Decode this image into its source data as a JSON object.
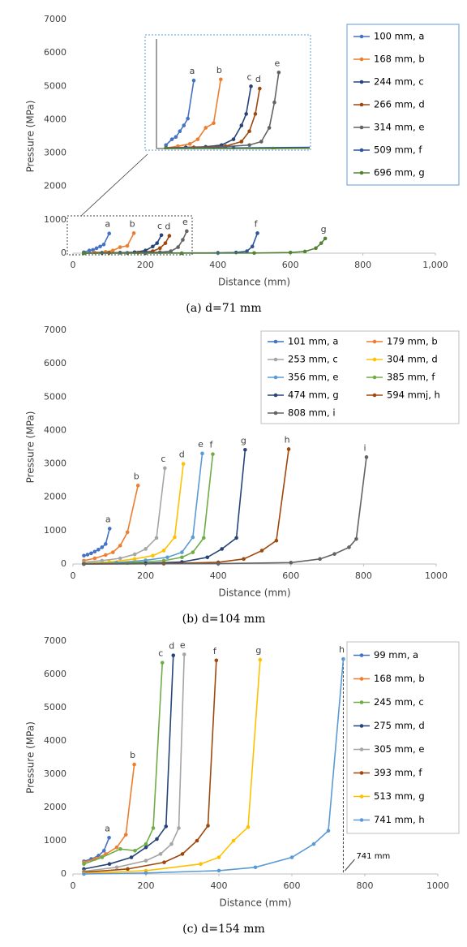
{
  "chart_data": [
    {
      "type": "line",
      "caption": "(a) d=71 mm",
      "xlabel": "Distance (mm)",
      "ylabel": "Pressure (MPa)",
      "xlim": [
        0,
        1000
      ],
      "xticks": [
        0,
        200,
        400,
        600,
        800,
        {
          "value": 1000,
          "label": "1,000"
        }
      ],
      "ylim": [
        0,
        7000
      ],
      "yticks": [
        0,
        1000,
        2000,
        3000,
        4000,
        5000,
        6000,
        7000
      ],
      "legend_columns": 1,
      "inset": true,
      "series": [
        {
          "name": "100 mm, a",
          "label": "a",
          "color": "#4472c4",
          "x": [
            30,
            45,
            55,
            65,
            75,
            85,
            100
          ],
          "values": [
            30,
            80,
            100,
            150,
            200,
            260,
            590
          ]
        },
        {
          "name": "168 mm, b",
          "label": "b",
          "color": "#ed7d31",
          "x": [
            30,
            60,
            90,
            110,
            130,
            150,
            168
          ],
          "values": [
            5,
            20,
            40,
            80,
            180,
            220,
            600
          ]
        },
        {
          "name": "244 mm, c",
          "label": "c",
          "color": "#264478",
          "x": [
            30,
            80,
            130,
            170,
            200,
            220,
            232,
            244
          ],
          "values": [
            5,
            10,
            15,
            30,
            80,
            200,
            300,
            540
          ]
        },
        {
          "name": "266 mm, d",
          "label": "d",
          "color": "#9e480e",
          "x": [
            30,
            100,
            180,
            220,
            240,
            255,
            266
          ],
          "values": [
            5,
            10,
            20,
            60,
            150,
            300,
            520
          ]
        },
        {
          "name": "314 mm, e",
          "label": "e",
          "color": "#636363",
          "x": [
            30,
            150,
            240,
            270,
            290,
            303,
            314
          ],
          "values": [
            5,
            10,
            30,
            60,
            180,
            400,
            660
          ]
        },
        {
          "name": "509 mm, f",
          "label": "f",
          "color": "#2f5597",
          "x": [
            30,
            200,
            400,
            450,
            480,
            495,
            509
          ],
          "values": [
            0,
            5,
            10,
            20,
            60,
            200,
            600
          ]
        },
        {
          "name": "696 mm, g",
          "label": "g",
          "color": "#548235",
          "x": [
            30,
            300,
            500,
            600,
            640,
            670,
            685,
            696
          ],
          "values": [
            0,
            0,
            5,
            20,
            50,
            150,
            300,
            440
          ]
        }
      ]
    },
    {
      "type": "line",
      "caption": "(b) d=104 mm",
      "xlabel": "Distance (mm)",
      "ylabel": "Pressure (MPa)",
      "xlim": [
        0,
        1000
      ],
      "xticks": [
        0,
        200,
        400,
        600,
        800,
        1000
      ],
      "ylim": [
        0,
        7000
      ],
      "yticks": [
        0,
        1000,
        2000,
        3000,
        4000,
        5000,
        6000,
        7000
      ],
      "legend_columns": 2,
      "series": [
        {
          "name": "101 mm, a",
          "label": "a",
          "color": "#4472c4",
          "x": [
            30,
            40,
            50,
            60,
            70,
            80,
            90,
            101
          ],
          "values": [
            250,
            280,
            320,
            370,
            430,
            500,
            600,
            1060
          ]
        },
        {
          "name": "179 mm, b",
          "label": "b",
          "color": "#ed7d31",
          "x": [
            30,
            60,
            90,
            110,
            130,
            150,
            179
          ],
          "values": [
            100,
            170,
            270,
            350,
            550,
            950,
            2350
          ]
        },
        {
          "name": "253 mm, c",
          "label": "c",
          "color": "#a5a5a5",
          "x": [
            30,
            80,
            130,
            170,
            200,
            230,
            253
          ],
          "values": [
            50,
            100,
            170,
            290,
            450,
            780,
            2870
          ]
        },
        {
          "name": "304 mm, d",
          "label": "d",
          "color": "#ffc000",
          "x": [
            30,
            100,
            170,
            220,
            250,
            280,
            304
          ],
          "values": [
            20,
            60,
            150,
            250,
            400,
            800,
            3000
          ]
        },
        {
          "name": "356 mm, e",
          "label": "e",
          "color": "#5b9bd5",
          "x": [
            30,
            120,
            200,
            260,
            300,
            330,
            356
          ],
          "values": [
            10,
            40,
            110,
            200,
            350,
            800,
            3310
          ]
        },
        {
          "name": "385 mm, f",
          "label": "f",
          "color": "#70ad47",
          "x": [
            30,
            150,
            250,
            300,
            330,
            360,
            385
          ],
          "values": [
            5,
            30,
            100,
            200,
            350,
            780,
            3290
          ]
        },
        {
          "name": "474 mm, g",
          "label": "g",
          "color": "#264478",
          "x": [
            30,
            200,
            300,
            370,
            410,
            450,
            474
          ],
          "values": [
            0,
            20,
            60,
            200,
            450,
            780,
            3420
          ]
        },
        {
          "name": "594 mmj, h",
          "label": "h",
          "color": "#9e480e",
          "x": [
            30,
            250,
            400,
            470,
            520,
            560,
            594
          ],
          "values": [
            0,
            10,
            50,
            150,
            400,
            700,
            3440
          ]
        },
        {
          "name": "808 mm, i",
          "label": "i",
          "color": "#636363",
          "x": [
            30,
            400,
            600,
            680,
            720,
            760,
            780,
            808
          ],
          "values": [
            0,
            10,
            40,
            150,
            300,
            500,
            750,
            3200
          ]
        }
      ]
    },
    {
      "type": "line",
      "caption": "(c) d=154 mm",
      "xlabel": "Distance (mm)",
      "ylabel": "Pressure (MPa)",
      "xlim": [
        0,
        1000
      ],
      "xticks": [
        0,
        200,
        400,
        600,
        800,
        1000
      ],
      "ylim": [
        0,
        7000
      ],
      "yticks": [
        0,
        1000,
        2000,
        3000,
        4000,
        5000,
        6000,
        7000
      ],
      "legend_columns": 1,
      "annotation": {
        "text": "741 mm",
        "x": 741
      },
      "series": [
        {
          "name": "99 mm,  a",
          "label": "a",
          "color": "#4472c4",
          "x": [
            30,
            50,
            70,
            85,
            99
          ],
          "values": [
            380,
            450,
            550,
            700,
            1090
          ]
        },
        {
          "name": "168 mm, b",
          "label": "b",
          "color": "#ed7d31",
          "x": [
            30,
            60,
            90,
            120,
            145,
            168
          ],
          "values": [
            350,
            450,
            600,
            800,
            1180,
            3290
          ]
        },
        {
          "name": "245 mm, c",
          "label": "c",
          "color": "#70ad47",
          "x": [
            30,
            80,
            130,
            170,
            200,
            220,
            245
          ],
          "values": [
            300,
            500,
            750,
            700,
            900,
            1380,
            6350
          ]
        },
        {
          "name": "275 mm, d",
          "label": "d",
          "color": "#264478",
          "x": [
            30,
            100,
            160,
            200,
            230,
            255,
            275
          ],
          "values": [
            150,
            300,
            500,
            800,
            1050,
            1430,
            6570
          ]
        },
        {
          "name": "305 mm, e",
          "label": "e",
          "color": "#a5a5a5",
          "x": [
            30,
            120,
            200,
            240,
            270,
            290,
            305
          ],
          "values": [
            80,
            200,
            400,
            600,
            900,
            1380,
            6600
          ]
        },
        {
          "name": "393 mm, f",
          "label": "f",
          "color": "#9e480e",
          "x": [
            30,
            150,
            250,
            300,
            340,
            370,
            393
          ],
          "values": [
            50,
            150,
            350,
            600,
            1000,
            1450,
            6420
          ]
        },
        {
          "name": "513 mm, g",
          "label": "g",
          "color": "#ffc000",
          "x": [
            30,
            200,
            350,
            400,
            440,
            480,
            513
          ],
          "values": [
            20,
            100,
            300,
            500,
            1000,
            1410,
            6440
          ]
        },
        {
          "name": "741 mm, h",
          "label": "h",
          "color": "#5b9bd5",
          "x": [
            30,
            200,
            400,
            500,
            600,
            660,
            700,
            741
          ],
          "values": [
            0,
            30,
            100,
            200,
            500,
            900,
            1300,
            6460
          ]
        }
      ]
    }
  ]
}
